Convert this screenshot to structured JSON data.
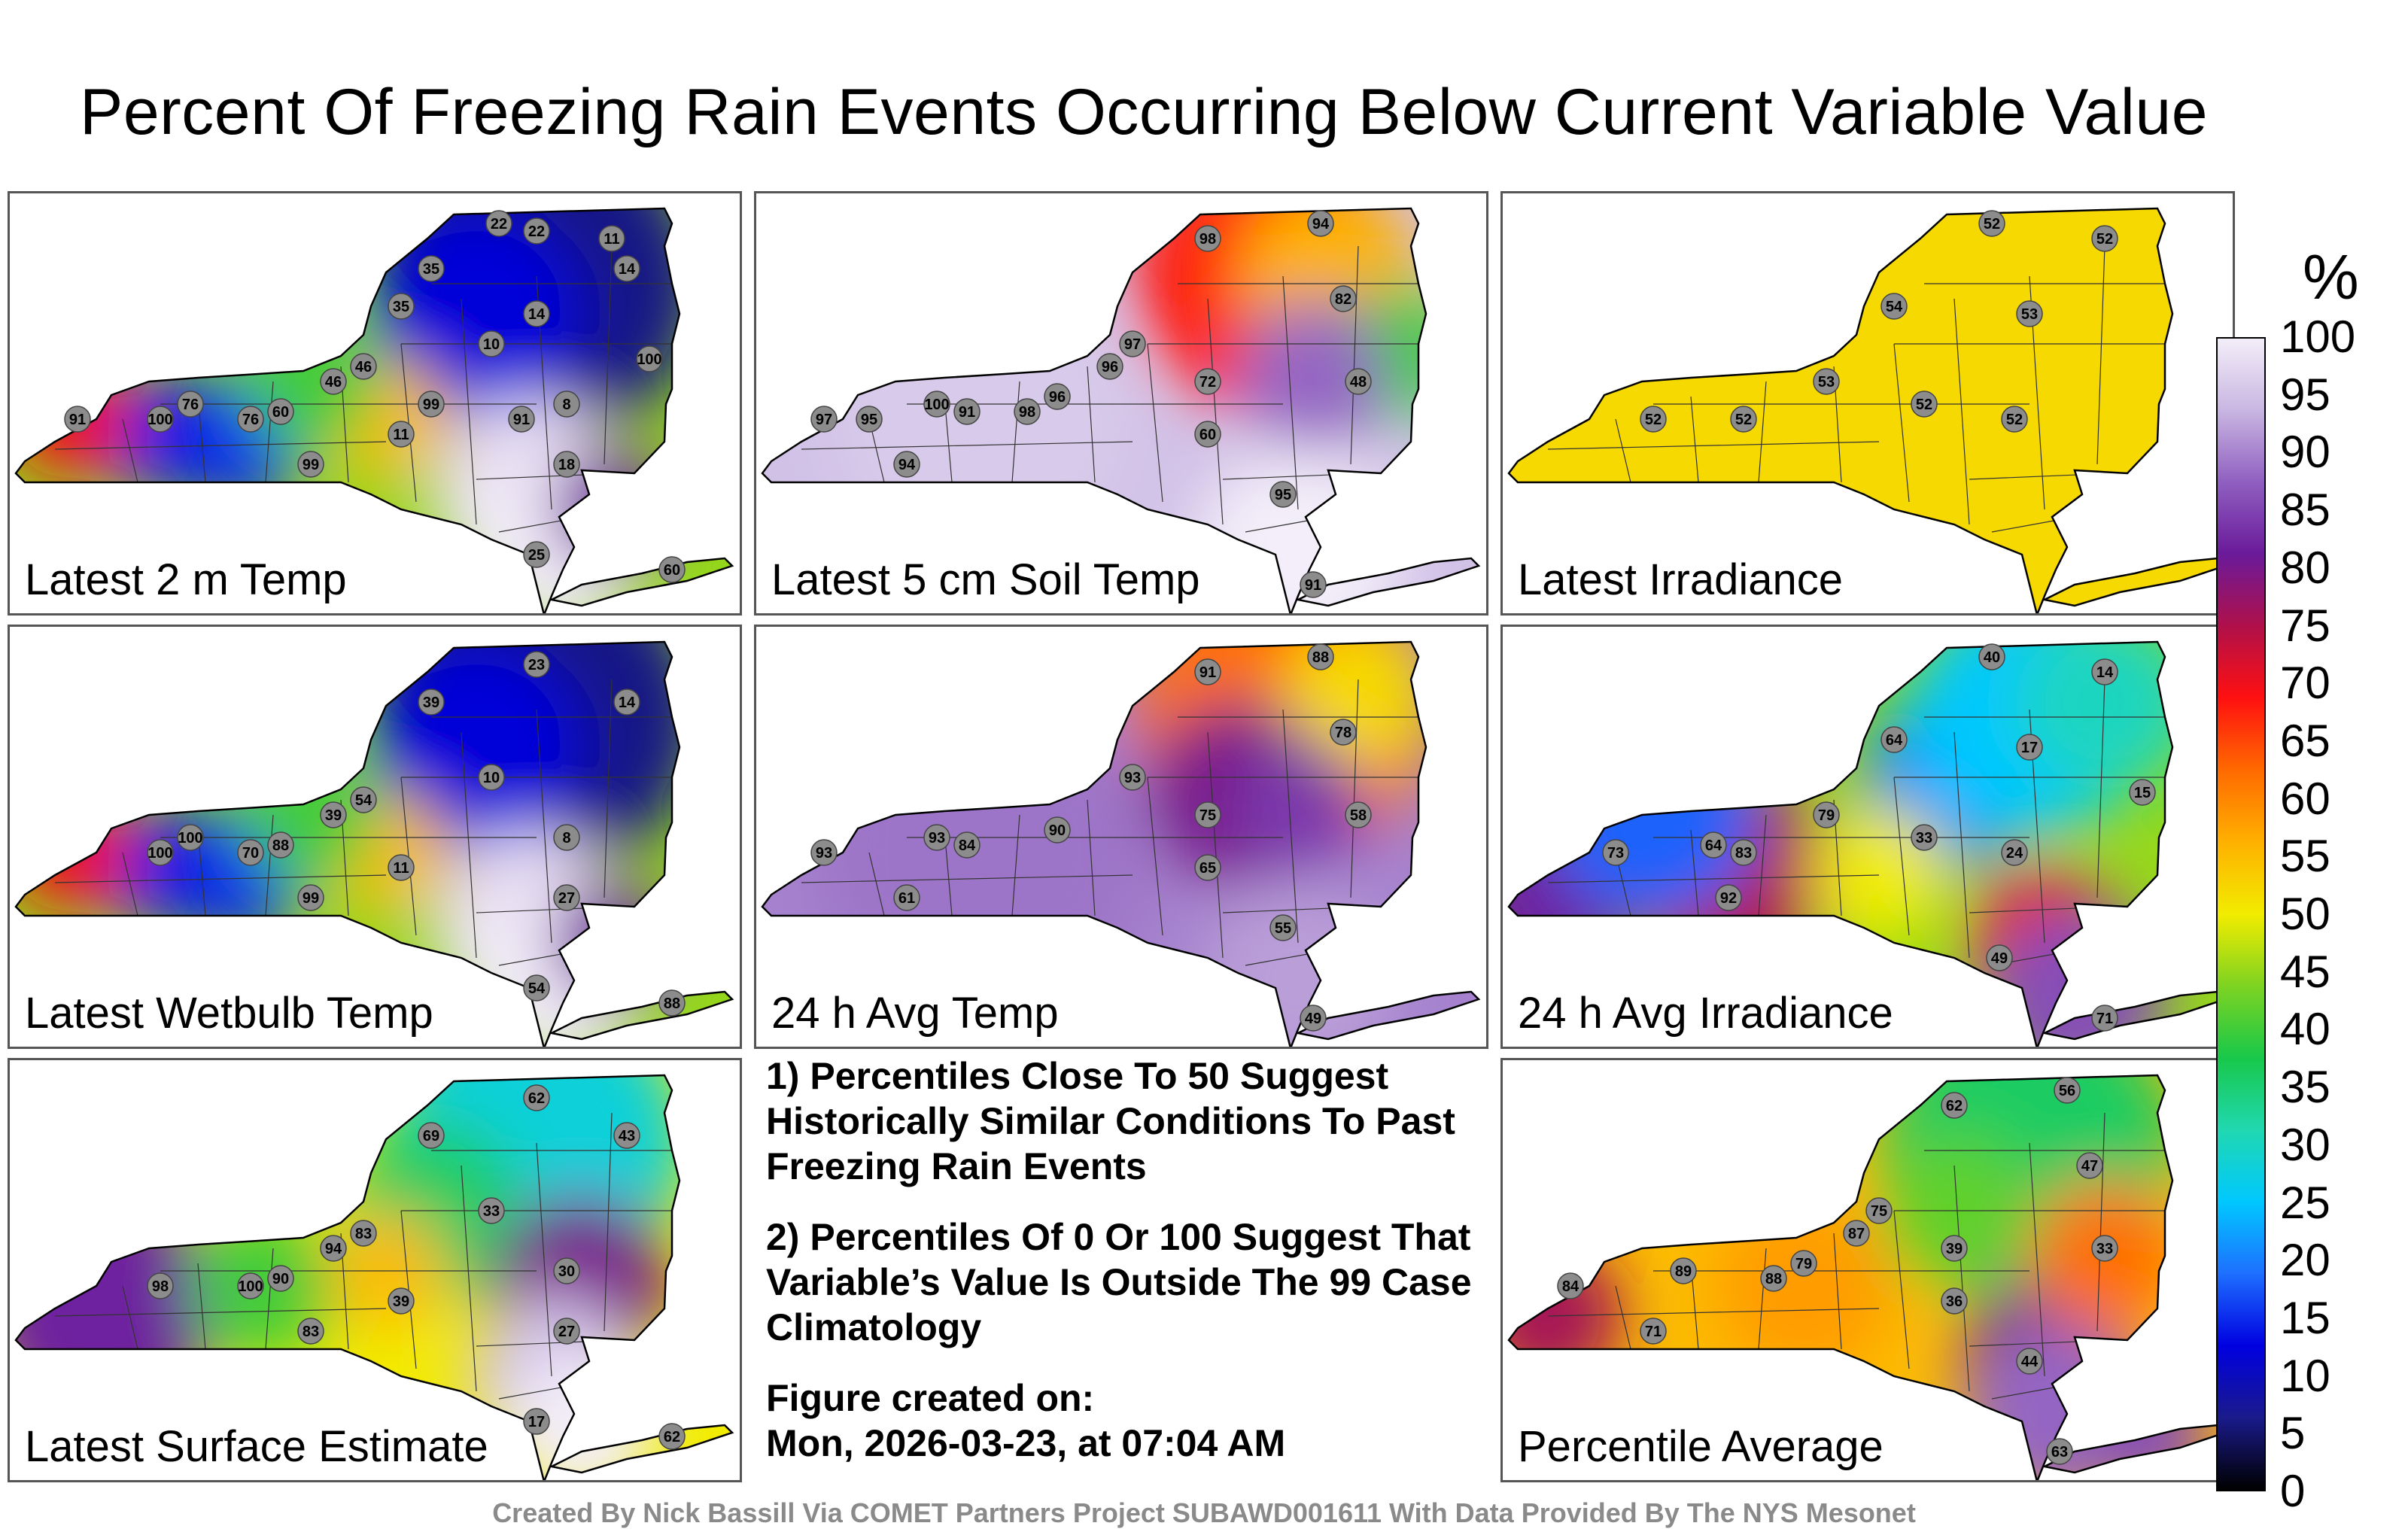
{
  "title": "Percent Of Freezing Rain Events Occurring Below Current Variable Value",
  "panels": [
    {
      "label": "Latest 2 m Temp",
      "scheme": "cold",
      "stations": [
        [
          91,
          "91"
        ],
        [
          76,
          "76"
        ],
        [
          60,
          "60"
        ],
        [
          46,
          "46"
        ],
        [
          35,
          "35"
        ],
        [
          22,
          "22"
        ],
        [
          14,
          "14"
        ],
        [
          10,
          "10"
        ],
        [
          11,
          "11"
        ],
        [
          8,
          "8"
        ],
        [
          18,
          "18"
        ],
        [
          25,
          "25"
        ],
        [
          60,
          "60"
        ],
        [
          99,
          "99"
        ],
        [
          100,
          "100"
        ],
        [
          76,
          "76"
        ],
        [
          46,
          "46"
        ],
        [
          35,
          "35"
        ],
        [
          22,
          "22"
        ],
        [
          11,
          "11"
        ],
        [
          14,
          "14"
        ],
        [
          99,
          "99"
        ],
        [
          91,
          "91"
        ],
        [
          100,
          "100"
        ]
      ]
    },
    {
      "label": "Latest 5 cm Soil Temp",
      "scheme": "soil",
      "stations": [
        [
          95,
          "95"
        ],
        [
          91,
          "91"
        ],
        [
          96,
          "96"
        ],
        [
          97,
          "97"
        ],
        [
          98,
          "98"
        ],
        [
          94,
          "94"
        ],
        [
          82,
          "82"
        ],
        [
          72,
          "72"
        ],
        [
          60,
          "60"
        ],
        [
          48,
          "48"
        ],
        [
          95,
          "95"
        ],
        [
          91,
          "91"
        ],
        [
          94,
          "94"
        ],
        [
          97,
          "97"
        ],
        [
          100,
          "100"
        ],
        [
          98,
          "98"
        ],
        [
          96,
          "96"
        ]
      ]
    },
    {
      "label": "Latest Irradiance",
      "scheme": "flat52",
      "stations": [
        [
          52,
          "52"
        ],
        [
          52,
          "52"
        ],
        [
          53,
          "53"
        ],
        [
          54,
          "54"
        ],
        [
          52,
          "52"
        ],
        [
          52,
          "52"
        ],
        [
          53,
          "53"
        ],
        [
          52,
          "52"
        ],
        [
          52,
          "52"
        ]
      ]
    },
    {
      "label": "Latest Wetbulb Temp",
      "scheme": "cold",
      "stations": [
        [
          100,
          "100"
        ],
        [
          88,
          "88"
        ],
        [
          54,
          "54"
        ],
        [
          39,
          "39"
        ],
        [
          23,
          "23"
        ],
        [
          14,
          "14"
        ],
        [
          10,
          "10"
        ],
        [
          11,
          "11"
        ],
        [
          8,
          "8"
        ],
        [
          27,
          "27"
        ],
        [
          54,
          "54"
        ],
        [
          88,
          "88"
        ],
        [
          99,
          "99"
        ],
        [
          100,
          "100"
        ],
        [
          70,
          "70"
        ],
        [
          39,
          "39"
        ]
      ]
    },
    {
      "label": "24 h Avg Temp",
      "scheme": "avgtemp",
      "stations": [
        [
          84,
          "84"
        ],
        [
          90,
          "90"
        ],
        [
          93,
          "93"
        ],
        [
          91,
          "91"
        ],
        [
          88,
          "88"
        ],
        [
          78,
          "78"
        ],
        [
          75,
          "75"
        ],
        [
          65,
          "65"
        ],
        [
          58,
          "58"
        ],
        [
          55,
          "55"
        ],
        [
          49,
          "49"
        ],
        [
          61,
          "61"
        ],
        [
          93,
          "93"
        ],
        [
          93,
          "93"
        ]
      ]
    },
    {
      "label": "24 h Avg Irradiance",
      "scheme": "avgirr",
      "stations": [
        [
          83,
          "83"
        ],
        [
          79,
          "79"
        ],
        [
          64,
          "64"
        ],
        [
          40,
          "40"
        ],
        [
          14,
          "14"
        ],
        [
          17,
          "17"
        ],
        [
          33,
          "33"
        ],
        [
          24,
          "24"
        ],
        [
          15,
          "15"
        ],
        [
          49,
          "49"
        ],
        [
          71,
          "71"
        ],
        [
          92,
          "92"
        ],
        [
          73,
          "73"
        ],
        [
          64,
          "64"
        ]
      ]
    },
    {
      "label": "Latest Surface Estimate",
      "scheme": "surface",
      "stations": [
        [
          90,
          "90"
        ],
        [
          83,
          "83"
        ],
        [
          69,
          "69"
        ],
        [
          62,
          "62"
        ],
        [
          43,
          "43"
        ],
        [
          33,
          "33"
        ],
        [
          39,
          "39"
        ],
        [
          30,
          "30"
        ],
        [
          27,
          "27"
        ],
        [
          17,
          "17"
        ],
        [
          62,
          "62"
        ],
        [
          83,
          "83"
        ],
        [
          98,
          "98"
        ],
        [
          100,
          "100"
        ],
        [
          94,
          "94"
        ]
      ]
    },
    {
      "label": "Percentile Average",
      "scheme": "average",
      "stations": [
        [
          79,
          "79"
        ],
        [
          75,
          "75"
        ],
        [
          62,
          "62"
        ],
        [
          56,
          "56"
        ],
        [
          47,
          "47"
        ],
        [
          39,
          "39"
        ],
        [
          36,
          "36"
        ],
        [
          33,
          "33"
        ],
        [
          44,
          "44"
        ],
        [
          63,
          "63"
        ],
        [
          71,
          "71"
        ],
        [
          84,
          "84"
        ],
        [
          89,
          "89"
        ],
        [
          88,
          "88"
        ],
        [
          87,
          "87"
        ]
      ]
    }
  ],
  "notes": [
    "1) Percentiles Close To 50 Suggest Historically Similar Conditions To Past Freezing Rain Events",
    "2) Percentiles Of 0 Or 100 Suggest That Variable’s Value Is Outside The 99 Case Climatology",
    "Figure created on:",
    "Mon, 2026-03-23, at 07:04 AM"
  ],
  "colorbar": {
    "unit": "%",
    "ticks": [
      "100",
      "95",
      "90",
      "85",
      "80",
      "75",
      "70",
      "65",
      "60",
      "55",
      "50",
      "45",
      "40",
      "35",
      "30",
      "25",
      "20",
      "15",
      "10",
      "5",
      "0"
    ],
    "stops": [
      "#000000",
      "#1a1a8c",
      "#0000e0",
      "#1e6fff",
      "#00c8ff",
      "#20d8b0",
      "#18c84a",
      "#7ed321",
      "#f2ec00",
      "#ffb000",
      "#ff6a00",
      "#ff1010",
      "#b0104a",
      "#6a1a9a",
      "#8f5fc0",
      "#c9b6e2",
      "#f3eef9"
    ]
  },
  "footer": "Created By Nick Bassill Via COMET Partners Project SUBAWD001611 With Data Provided By The NYS Mesonet"
}
